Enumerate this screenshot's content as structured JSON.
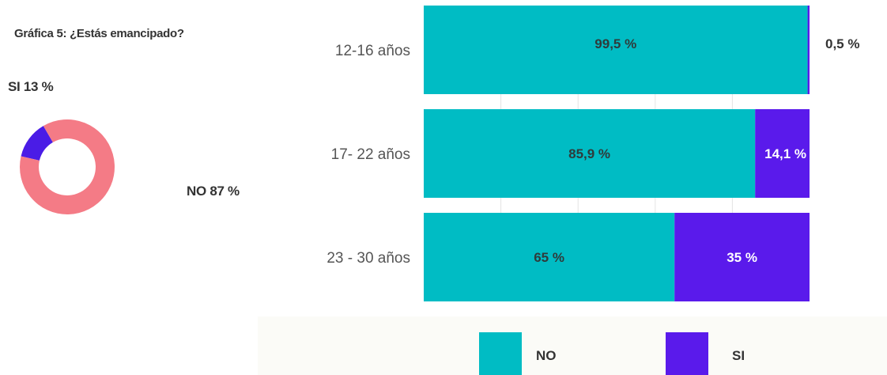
{
  "title": "Gráfica 5: ¿Estás emancipado?",
  "colors": {
    "no": "#00bcc4",
    "si": "#5a1aeb",
    "donut_no": "#f47b86",
    "donut_si": "#4a1ce6",
    "grid": "#e4e4e4"
  },
  "chart_data": [
    {
      "type": "pie",
      "donut": true,
      "title": "Gráfica 5: ¿Estás emancipado?",
      "slices": [
        {
          "name": "SI",
          "value": 13,
          "label": "SI 13 %"
        },
        {
          "name": "NO",
          "value": 87,
          "label": "NO 87 %"
        }
      ]
    },
    {
      "type": "bar",
      "orientation": "horizontal",
      "stacked": true,
      "xlim": [
        0,
        100
      ],
      "grid": true,
      "legend_position": "bottom",
      "categories": [
        "12-16 años",
        "17- 22 años",
        "23 - 30 años"
      ],
      "series": [
        {
          "name": "NO",
          "values": [
            99.5,
            85.9,
            65
          ],
          "labels": [
            "99,5 %",
            "85,9 %",
            "65 %"
          ]
        },
        {
          "name": "SI",
          "values": [
            0.5,
            14.1,
            35
          ],
          "labels": [
            "0,5 %",
            "14,1 %",
            "35 %"
          ]
        }
      ]
    }
  ]
}
